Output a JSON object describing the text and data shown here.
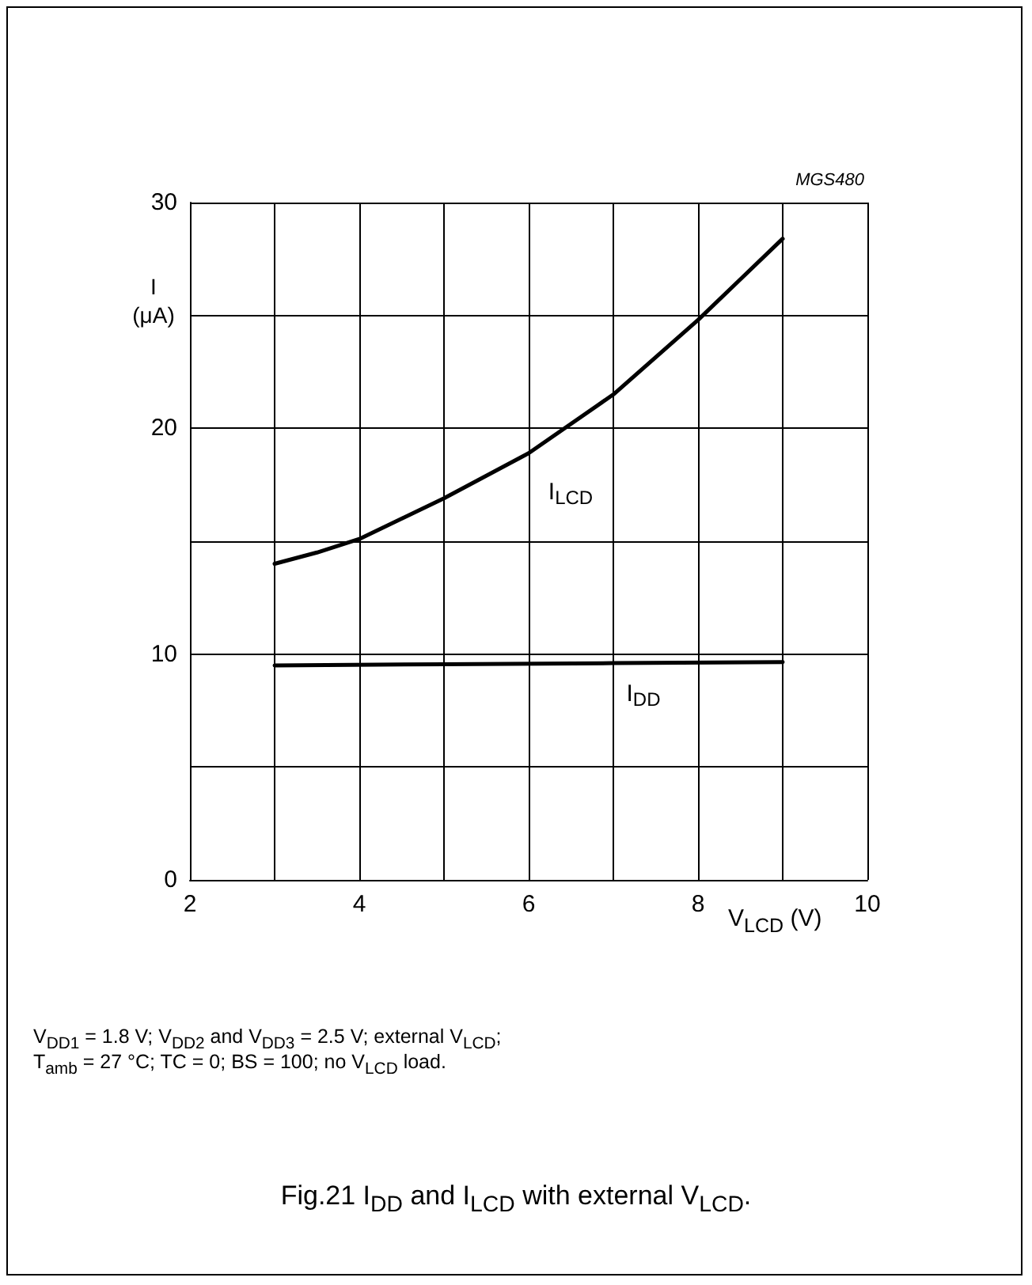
{
  "chart_data": {
    "type": "line",
    "title": "Fig.21  I$_{DD}$ and I$_{LCD}$ with external V$_{LCD}$.",
    "xlabel": "V$_{LCD}$ (V)",
    "ylabel": "I (μA)",
    "annotations": [
      "MGS480",
      "V$_{DD1}$ = 1.8 V; V$_{DD2}$ and V$_{DD3}$ = 2.5 V; external V$_{LCD}$;",
      "T$_{amb}$ = 27 °C; TC = 0; BS = 100; no V$_{LCD}$ load."
    ],
    "series": [
      {
        "name": "I$_{LCD}$",
        "color": "#000000",
        "x": [
          3,
          3.5,
          4,
          5,
          6,
          7,
          8,
          8.5,
          9
        ],
        "values": [
          14.0,
          14.5,
          15.1,
          16.9,
          18.9,
          21.5,
          24.8,
          26.6,
          28.4
        ]
      },
      {
        "name": "I$_{DD}$",
        "color": "#000000",
        "x": [
          3,
          5,
          7,
          9
        ],
        "values": [
          9.5,
          9.55,
          9.6,
          9.65
        ]
      }
    ],
    "xlim": [
      2,
      10
    ],
    "xticks": [
      2,
      {
        "value": 3,
        "label": null
      },
      4,
      {
        "value": 5,
        "label": null
      },
      6,
      {
        "value": 7,
        "label": null
      },
      8,
      {
        "value": 9,
        "label": null
      },
      10
    ],
    "ylim": [
      0,
      30
    ],
    "yticks": [
      0,
      {
        "value": 5,
        "label": null
      },
      10,
      {
        "value": 15,
        "label": null
      },
      20,
      {
        "value": 25,
        "label": null
      },
      30
    ],
    "grid": true,
    "legend": false,
    "marker": "none",
    "line_style": "solid"
  }
}
